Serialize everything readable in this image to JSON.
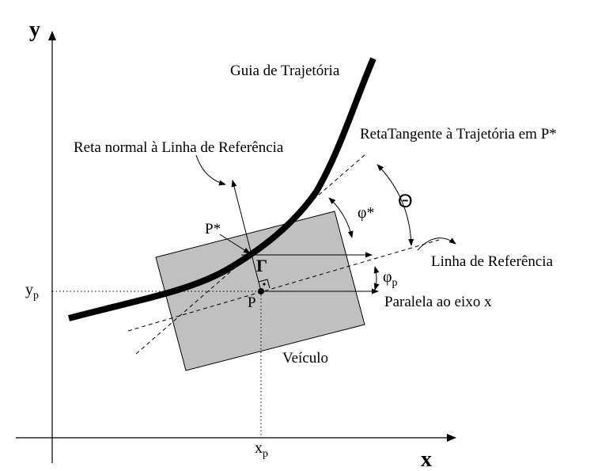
{
  "axes": {
    "x_label": "x",
    "y_label": "y",
    "xp_main": "x",
    "xp_sub": "p",
    "yp_main": "y",
    "yp_sub": "p"
  },
  "labels": {
    "guia": "Guia de Trajetória",
    "reta_tangente": "RetaTangente à Trajetória em P*",
    "reta_normal": "Reta normal à Linha de Referência",
    "linha_referencia": "Linha de Referência",
    "paralela": "Paralela ao eixo x",
    "veiculo": "Veículo",
    "p_star": "P*",
    "p": "P",
    "gamma": "Γ",
    "theta": "Θ",
    "phi_star": "φ*",
    "phi_p_main": "φ",
    "phi_p_sub": "p"
  },
  "colors": {
    "vehicle_fill": "#c0c0c0",
    "stroke": "#000000"
  }
}
